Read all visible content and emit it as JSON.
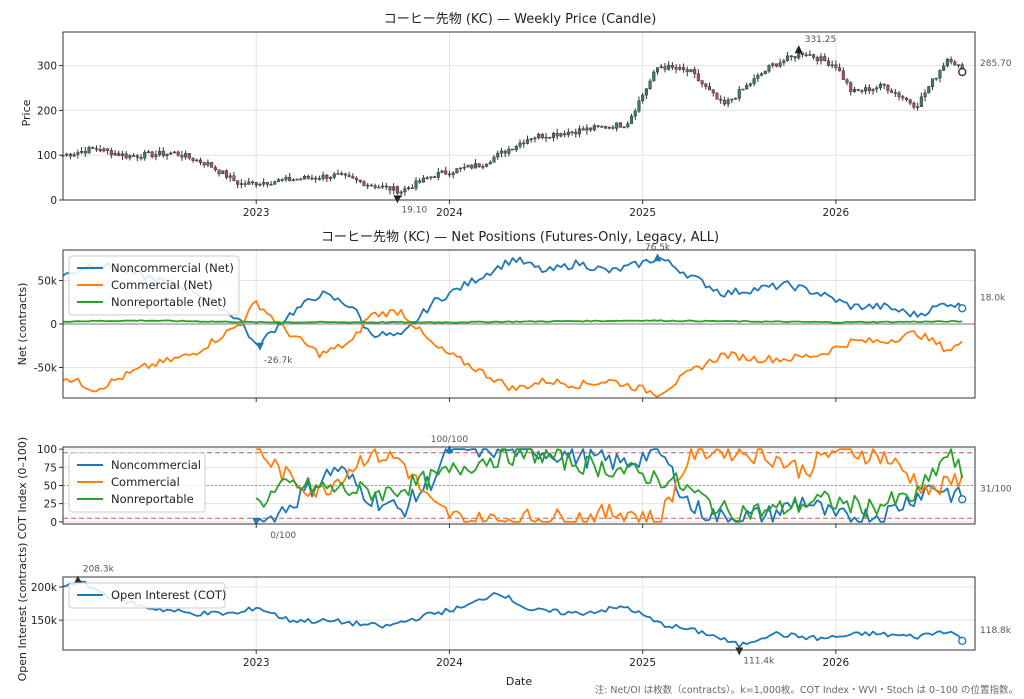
{
  "footer_note": "注: Net/OI は枚数（contracts）。k=1,000枚。COT Index・WVI・Stoch は 0–100 の位置指数。",
  "chart_data": [
    {
      "type": "candlestick",
      "title": "コーヒー先物 (KC) — Weekly Price (Candle)",
      "ylabel": "Price",
      "xlabel": "",
      "x_ticks": [
        "2023",
        "2024",
        "2025",
        "2026"
      ],
      "y_ticks": [
        "0",
        "100",
        "200",
        "300"
      ],
      "ylim": [
        0,
        375
      ],
      "x_range": [
        "2022-01",
        "2026-09"
      ],
      "grid": true,
      "up_color": "#3a7d6a",
      "down_color": "#b5505a",
      "close_anchors": [
        {
          "t": "2022-01",
          "v": 100
        },
        {
          "t": "2022-03",
          "v": 115
        },
        {
          "t": "2022-05",
          "v": 98
        },
        {
          "t": "2022-08",
          "v": 105
        },
        {
          "t": "2022-10",
          "v": 80
        },
        {
          "t": "2022-12",
          "v": 35
        },
        {
          "t": "2023-03",
          "v": 45
        },
        {
          "t": "2023-06",
          "v": 55
        },
        {
          "t": "2023-08",
          "v": 35
        },
        {
          "t": "2023-10",
          "v": 20
        },
        {
          "t": "2023-12",
          "v": 55
        },
        {
          "t": "2024-03",
          "v": 80
        },
        {
          "t": "2024-06",
          "v": 140
        },
        {
          "t": "2024-09",
          "v": 155
        },
        {
          "t": "2024-12",
          "v": 170
        },
        {
          "t": "2025-02",
          "v": 300
        },
        {
          "t": "2025-04",
          "v": 285
        },
        {
          "t": "2025-06",
          "v": 210
        },
        {
          "t": "2025-09",
          "v": 300
        },
        {
          "t": "2025-11",
          "v": 330
        },
        {
          "t": "2026-01",
          "v": 300
        },
        {
          "t": "2026-02",
          "v": 240
        },
        {
          "t": "2026-04",
          "v": 255
        },
        {
          "t": "2026-06",
          "v": 210
        },
        {
          "t": "2026-08",
          "v": 320
        },
        {
          "t": "2026-09",
          "v": 285.7
        }
      ],
      "annotations": {
        "max": "331.25",
        "min": "19.10",
        "last": "285.70"
      }
    },
    {
      "type": "line",
      "title": "コーヒー先物 (KC) — Net Positions (Futures-Only, Legacy, ALL)",
      "ylabel": "Net (contracts)",
      "y_ticks": [
        "50k",
        "0",
        "-50k"
      ],
      "ylim": [
        -85,
        85
      ],
      "grid": true,
      "legend_position": "top-left",
      "series": [
        {
          "name": "Noncommercial (Net)",
          "color": "#1f77b4",
          "anchors": [
            {
              "t": "2022-01",
              "v": 55
            },
            {
              "t": "2022-03",
              "v": 70
            },
            {
              "t": "2022-06",
              "v": 55
            },
            {
              "t": "2022-09",
              "v": 40
            },
            {
              "t": "2022-12",
              "v": 5
            },
            {
              "t": "2023-01",
              "v": -26.7
            },
            {
              "t": "2023-03",
              "v": 10
            },
            {
              "t": "2023-05",
              "v": 35
            },
            {
              "t": "2023-07",
              "v": 20
            },
            {
              "t": "2023-08",
              "v": -10
            },
            {
              "t": "2023-10",
              "v": -15
            },
            {
              "t": "2023-12",
              "v": 25
            },
            {
              "t": "2024-03",
              "v": 55
            },
            {
              "t": "2024-05",
              "v": 75
            },
            {
              "t": "2024-07",
              "v": 60
            },
            {
              "t": "2024-09",
              "v": 70
            },
            {
              "t": "2024-11",
              "v": 60
            },
            {
              "t": "2025-01",
              "v": 70
            },
            {
              "t": "2025-02",
              "v": 76.5
            },
            {
              "t": "2025-04",
              "v": 55
            },
            {
              "t": "2025-06",
              "v": 35
            },
            {
              "t": "2025-08",
              "v": 40
            },
            {
              "t": "2025-10",
              "v": 45
            },
            {
              "t": "2025-12",
              "v": 35
            },
            {
              "t": "2026-02",
              "v": 20
            },
            {
              "t": "2026-04",
              "v": 20
            },
            {
              "t": "2026-06",
              "v": 10
            },
            {
              "t": "2026-08",
              "v": 25
            },
            {
              "t": "2026-09",
              "v": 18.0
            }
          ]
        },
        {
          "name": "Commercial (Net)",
          "color": "#ff7f0e",
          "anchors": [
            {
              "t": "2022-01",
              "v": -60
            },
            {
              "t": "2022-03",
              "v": -75
            },
            {
              "t": "2022-06",
              "v": -50
            },
            {
              "t": "2022-09",
              "v": -35
            },
            {
              "t": "2022-12",
              "v": 0
            },
            {
              "t": "2023-01",
              "v": 25
            },
            {
              "t": "2023-03",
              "v": -10
            },
            {
              "t": "2023-05",
              "v": -35
            },
            {
              "t": "2023-07",
              "v": -20
            },
            {
              "t": "2023-08",
              "v": 10
            },
            {
              "t": "2023-10",
              "v": 15
            },
            {
              "t": "2023-12",
              "v": -25
            },
            {
              "t": "2024-03",
              "v": -55
            },
            {
              "t": "2024-05",
              "v": -75
            },
            {
              "t": "2024-07",
              "v": -65
            },
            {
              "t": "2024-09",
              "v": -70
            },
            {
              "t": "2024-11",
              "v": -65
            },
            {
              "t": "2025-01",
              "v": -75
            },
            {
              "t": "2025-02",
              "v": -80
            },
            {
              "t": "2025-04",
              "v": -55
            },
            {
              "t": "2025-06",
              "v": -35
            },
            {
              "t": "2025-08",
              "v": -40
            },
            {
              "t": "2025-10",
              "v": -40
            },
            {
              "t": "2025-12",
              "v": -35
            },
            {
              "t": "2026-02",
              "v": -20
            },
            {
              "t": "2026-04",
              "v": -20
            },
            {
              "t": "2026-06",
              "v": -10
            },
            {
              "t": "2026-08",
              "v": -30
            },
            {
              "t": "2026-09",
              "v": -20
            }
          ]
        },
        {
          "name": "Nonreportable (Net)",
          "color": "#2ca02c",
          "anchors": [
            {
              "t": "2022-01",
              "v": 3
            },
            {
              "t": "2022-06",
              "v": 4
            },
            {
              "t": "2023-01",
              "v": 2
            },
            {
              "t": "2024-01",
              "v": 2
            },
            {
              "t": "2025-01",
              "v": 4
            },
            {
              "t": "2026-01",
              "v": 2
            },
            {
              "t": "2026-09",
              "v": 3
            }
          ]
        }
      ],
      "annotations": {
        "max": "76.5k",
        "min": "-26.7k",
        "last": "18.0k"
      }
    },
    {
      "type": "line",
      "title": "",
      "ylabel": "COT Index (0–100)",
      "y_ticks": [
        "0",
        "25",
        "50",
        "75",
        "100"
      ],
      "ylim": [
        -3,
        103
      ],
      "grid": true,
      "legend_position": "top-left",
      "series": [
        {
          "name": "Noncommercial",
          "color": "#1f77b4",
          "anchors": [
            {
              "t": "2023-01",
              "v": 0
            },
            {
              "t": "2023-02",
              "v": 5
            },
            {
              "t": "2023-04",
              "v": 40
            },
            {
              "t": "2023-06",
              "v": 75
            },
            {
              "t": "2023-08",
              "v": 35
            },
            {
              "t": "2023-10",
              "v": 15
            },
            {
              "t": "2023-12",
              "v": 60
            },
            {
              "t": "2024-01",
              "v": 100
            },
            {
              "t": "2024-06",
              "v": 100
            },
            {
              "t": "2024-09",
              "v": 90
            },
            {
              "t": "2024-12",
              "v": 80
            },
            {
              "t": "2025-02",
              "v": 100
            },
            {
              "t": "2025-04",
              "v": 20
            },
            {
              "t": "2025-06",
              "v": 5
            },
            {
              "t": "2025-09",
              "v": 10
            },
            {
              "t": "2025-11",
              "v": 30
            },
            {
              "t": "2026-01",
              "v": 5
            },
            {
              "t": "2026-04",
              "v": 10
            },
            {
              "t": "2026-07",
              "v": 50
            },
            {
              "t": "2026-09",
              "v": 31
            }
          ]
        },
        {
          "name": "Commercial",
          "color": "#ff7f0e",
          "anchors": [
            {
              "t": "2023-01",
              "v": 100
            },
            {
              "t": "2023-03",
              "v": 60
            },
            {
              "t": "2023-05",
              "v": 40
            },
            {
              "t": "2023-08",
              "v": 95
            },
            {
              "t": "2023-10",
              "v": 85
            },
            {
              "t": "2023-12",
              "v": 20
            },
            {
              "t": "2024-02",
              "v": 0
            },
            {
              "t": "2024-06",
              "v": 5
            },
            {
              "t": "2024-09",
              "v": 5
            },
            {
              "t": "2024-12",
              "v": 15
            },
            {
              "t": "2025-02",
              "v": 0
            },
            {
              "t": "2025-04",
              "v": 95
            },
            {
              "t": "2025-06",
              "v": 100
            },
            {
              "t": "2025-09",
              "v": 90
            },
            {
              "t": "2025-11",
              "v": 70
            },
            {
              "t": "2026-01",
              "v": 100
            },
            {
              "t": "2026-04",
              "v": 90
            },
            {
              "t": "2026-07",
              "v": 40
            },
            {
              "t": "2026-09",
              "v": 65
            }
          ]
        },
        {
          "name": "Nonreportable",
          "color": "#2ca02c",
          "anchors": [
            {
              "t": "2023-01",
              "v": 25
            },
            {
              "t": "2023-03",
              "v": 50
            },
            {
              "t": "2023-06",
              "v": 45
            },
            {
              "t": "2023-09",
              "v": 40
            },
            {
              "t": "2023-12",
              "v": 60
            },
            {
              "t": "2024-03",
              "v": 85
            },
            {
              "t": "2024-06",
              "v": 95
            },
            {
              "t": "2024-09",
              "v": 80
            },
            {
              "t": "2024-12",
              "v": 70
            },
            {
              "t": "2025-03",
              "v": 55
            },
            {
              "t": "2025-06",
              "v": 15
            },
            {
              "t": "2025-09",
              "v": 15
            },
            {
              "t": "2025-12",
              "v": 30
            },
            {
              "t": "2026-03",
              "v": 20
            },
            {
              "t": "2026-06",
              "v": 35
            },
            {
              "t": "2026-08",
              "v": 95
            },
            {
              "t": "2026-09",
              "v": 60
            }
          ]
        }
      ],
      "thresholds": [
        95,
        50,
        5
      ],
      "annotations": {
        "max": "100/100",
        "min": "0/100",
        "last": "31/100"
      }
    },
    {
      "type": "line",
      "title": "",
      "ylabel": "Open Interest (contracts)",
      "xlabel": "Date",
      "x_ticks": [
        "2023",
        "2024",
        "2025",
        "2026"
      ],
      "y_ticks": [
        "200k",
        "150k"
      ],
      "ylim": [
        105,
        215
      ],
      "grid": true,
      "legend_position": "top-left",
      "series": [
        {
          "name": "Open Interest (COT)",
          "color": "#1f77b4",
          "anchors": [
            {
              "t": "2022-01",
              "v": 202
            },
            {
              "t": "2022-02",
              "v": 208.3
            },
            {
              "t": "2022-04",
              "v": 185
            },
            {
              "t": "2022-06",
              "v": 170
            },
            {
              "t": "2022-09",
              "v": 160
            },
            {
              "t": "2022-12",
              "v": 160
            },
            {
              "t": "2023-01",
              "v": 170
            },
            {
              "t": "2023-03",
              "v": 150
            },
            {
              "t": "2023-06",
              "v": 148
            },
            {
              "t": "2023-09",
              "v": 140
            },
            {
              "t": "2023-12",
              "v": 160
            },
            {
              "t": "2024-02",
              "v": 170
            },
            {
              "t": "2024-04",
              "v": 193
            },
            {
              "t": "2024-06",
              "v": 165
            },
            {
              "t": "2024-09",
              "v": 160
            },
            {
              "t": "2024-12",
              "v": 170
            },
            {
              "t": "2025-02",
              "v": 145
            },
            {
              "t": "2025-05",
              "v": 130
            },
            {
              "t": "2025-07",
              "v": 111.4
            },
            {
              "t": "2025-09",
              "v": 130
            },
            {
              "t": "2025-12",
              "v": 122
            },
            {
              "t": "2026-03",
              "v": 130
            },
            {
              "t": "2026-06",
              "v": 125
            },
            {
              "t": "2026-08",
              "v": 135
            },
            {
              "t": "2026-09",
              "v": 118.8
            }
          ]
        }
      ],
      "annotations": {
        "max": "208.3k",
        "min": "111.4k",
        "last": "118.8k"
      }
    }
  ]
}
